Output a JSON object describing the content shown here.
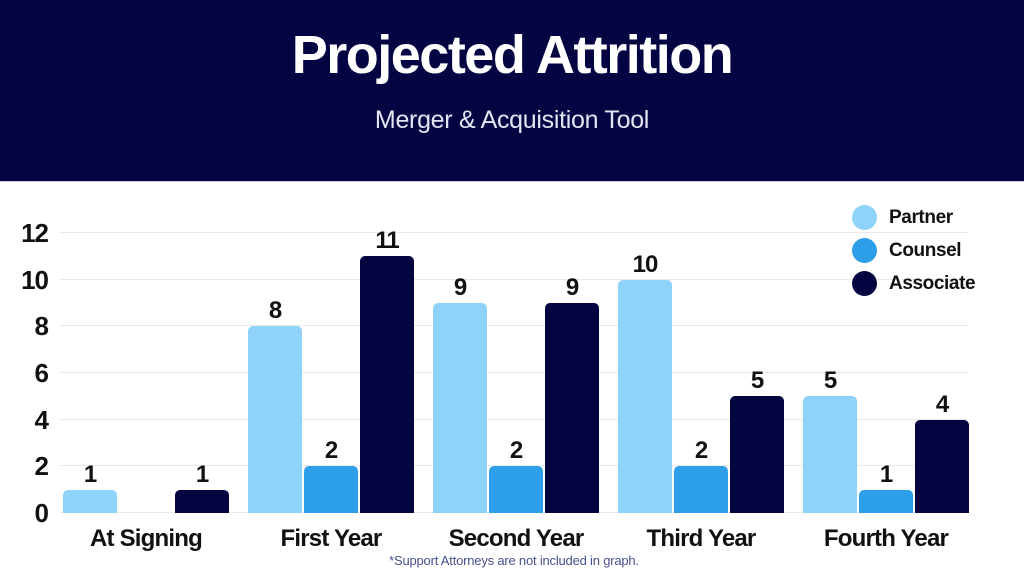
{
  "header": {
    "title": "Projected Attrition",
    "subtitle": "Merger & Acquisition Tool"
  },
  "chart_data": {
    "type": "bar",
    "title": "Projected Attrition",
    "subtitle": "Merger & Acquisition Tool",
    "categories": [
      "At Signing",
      "First Year",
      "Second Year",
      "Third Year",
      "Fourth Year"
    ],
    "series": [
      {
        "name": "Partner",
        "color": "#8FD3FA",
        "values": [
          1,
          8,
          9,
          10,
          5
        ]
      },
      {
        "name": "Counsel",
        "color": "#2D9FE8",
        "values": [
          0,
          2,
          2,
          2,
          1
        ]
      },
      {
        "name": "Associate",
        "color": "#040441",
        "values": [
          1,
          11,
          9,
          5,
          4
        ]
      }
    ],
    "yticks": [
      0,
      2,
      4,
      6,
      8,
      10,
      12
    ],
    "ylim": [
      0,
      12
    ],
    "grid": true,
    "value_labels": true,
    "zero_values_hidden": true,
    "legend_position": "top-right",
    "footnote": "*Support Attorneys are not included in graph."
  },
  "colors": {
    "header_bg": "#050442",
    "title_text": "#FFFFFF",
    "subtitle_text": "#E3E6F2",
    "grid_line": "#E9E9E9",
    "axis_text": "#111111",
    "footnote_text": "#47518D"
  }
}
